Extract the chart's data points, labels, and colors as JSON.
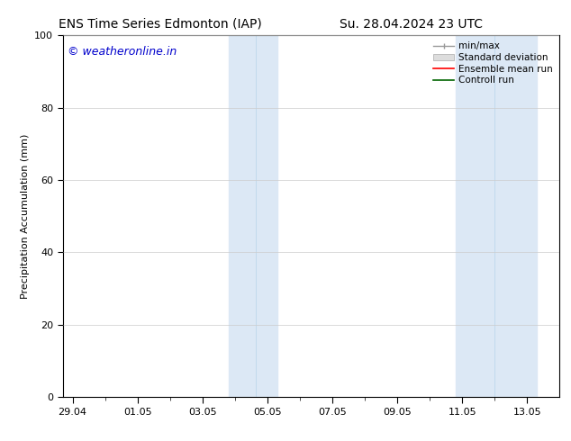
{
  "title_left": "ENS Time Series Edmonton (IAP)",
  "title_right": "Su. 28.04.2024 23 UTC",
  "ylabel": "Precipitation Accumulation (mm)",
  "watermark": "© weatheronline.in",
  "watermark_color": "#0000cc",
  "ylim": [
    0,
    100
  ],
  "yticks": [
    0,
    20,
    40,
    60,
    80,
    100
  ],
  "xtick_labels": [
    "29.04",
    "01.05",
    "03.05",
    "05.05",
    "07.05",
    "09.05",
    "11.05",
    "13.05"
  ],
  "background_color": "#ffffff",
  "plot_bg_color": "#ffffff",
  "shaded_regions": [
    {
      "x_start": 5.5,
      "x_end": 6.5,
      "color": "#ddeeff"
    },
    {
      "x_start": 12.5,
      "x_end": 14.5,
      "color": "#ddeeff"
    }
  ],
  "legend_items": [
    {
      "label": "min/max",
      "color": "#aaaaaa",
      "type": "errorbar"
    },
    {
      "label": "Standard deviation",
      "color": "#cccccc",
      "type": "bar"
    },
    {
      "label": "Ensemble mean run",
      "color": "#ff0000",
      "type": "line"
    },
    {
      "label": "Controll run",
      "color": "#006600",
      "type": "line"
    }
  ],
  "x_min": -0.5,
  "x_max": 15.5,
  "font_size_title": 10,
  "font_size_labels": 8,
  "font_size_watermark": 9
}
